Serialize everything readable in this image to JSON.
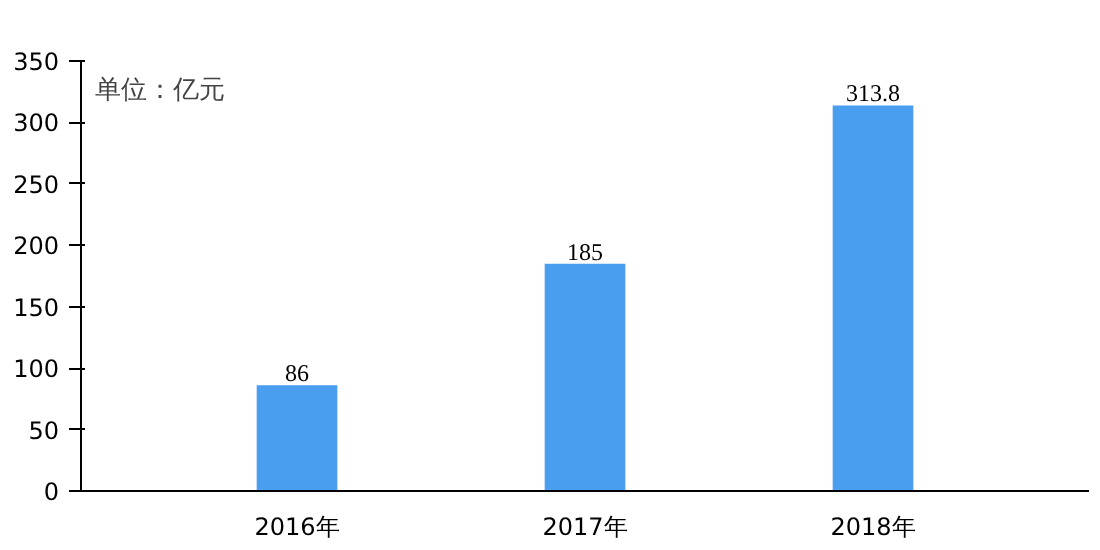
{
  "chart_data": {
    "type": "bar",
    "categories": [
      "2016年",
      "2017年",
      "2018年"
    ],
    "values": [
      86,
      185,
      313.8
    ],
    "color": "#4a9ef0",
    "ylim": [
      0,
      350
    ],
    "yticks": [
      0,
      50,
      100,
      150,
      200,
      250,
      300,
      350
    ],
    "data_labels": true,
    "grid": false,
    "annotations": [
      "单位：亿元"
    ]
  }
}
